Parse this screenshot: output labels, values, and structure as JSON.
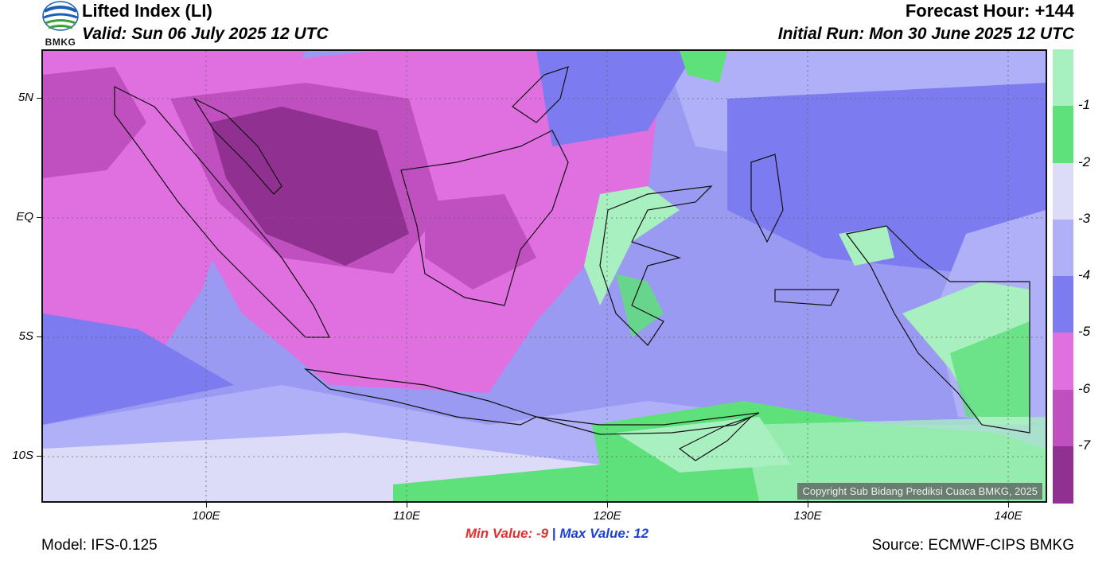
{
  "header": {
    "title": "Lifted Index (LI)",
    "valid": "Valid: Sun 06 July 2025 12 UTC",
    "forecast_hour": "Forecast Hour: +144",
    "initial_run": "Initial Run: Mon 30 June 2025 12 UTC",
    "logo_text": "BMKG"
  },
  "map": {
    "lat_labels": [
      "5N",
      "EQ",
      "5S",
      "10S"
    ],
    "lon_labels": [
      "100E",
      "110E",
      "120E",
      "130E",
      "140E"
    ],
    "copyright": "Copyright Sub Bidang Prediksi Cuaca BMKG, 2025"
  },
  "colorbar": {
    "labels": [
      "-1",
      "-2",
      "-3",
      "-4",
      "-5",
      "-6",
      "-7"
    ],
    "colors": [
      "#a8f0c0",
      "#5ee07a",
      "#dcdcf8",
      "#b0b0f8",
      "#7c7cf0",
      "#e070e0",
      "#c050c0",
      "#903090"
    ]
  },
  "stats": {
    "min_label": "Min Value:  -9",
    "separator": "|",
    "max_label": "Max Value:  12"
  },
  "footer": {
    "model": "Model: IFS-0.125",
    "source": "Source: ECMWF-CIPS BMKG"
  }
}
